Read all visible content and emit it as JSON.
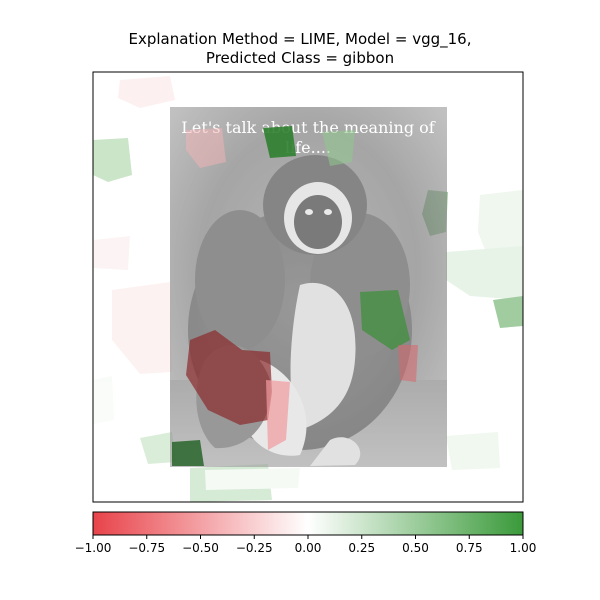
{
  "title": {
    "line1": "Explanation Method = LIME, Model = vgg_16,",
    "line2": "Predicted Class = gibbon"
  },
  "image": {
    "caption_line1": "Let's talk about the meaning of",
    "caption_line2": "life...."
  },
  "colorbar": {
    "min": -1.0,
    "max": 1.0,
    "colors": {
      "negative": "#e8434a",
      "neutral": "#ffffff",
      "positive": "#3a9a3a"
    },
    "ticks": [
      {
        "value": -1.0,
        "label": "−1.00"
      },
      {
        "value": -0.75,
        "label": "−0.75"
      },
      {
        "value": -0.5,
        "label": "−0.50"
      },
      {
        "value": -0.25,
        "label": "−0.25"
      },
      {
        "value": 0.0,
        "label": "0.00"
      },
      {
        "value": 0.25,
        "label": "0.25"
      },
      {
        "value": 0.5,
        "label": "0.50"
      },
      {
        "value": 0.75,
        "label": "0.75"
      },
      {
        "value": 1.0,
        "label": "1.00"
      }
    ]
  }
}
